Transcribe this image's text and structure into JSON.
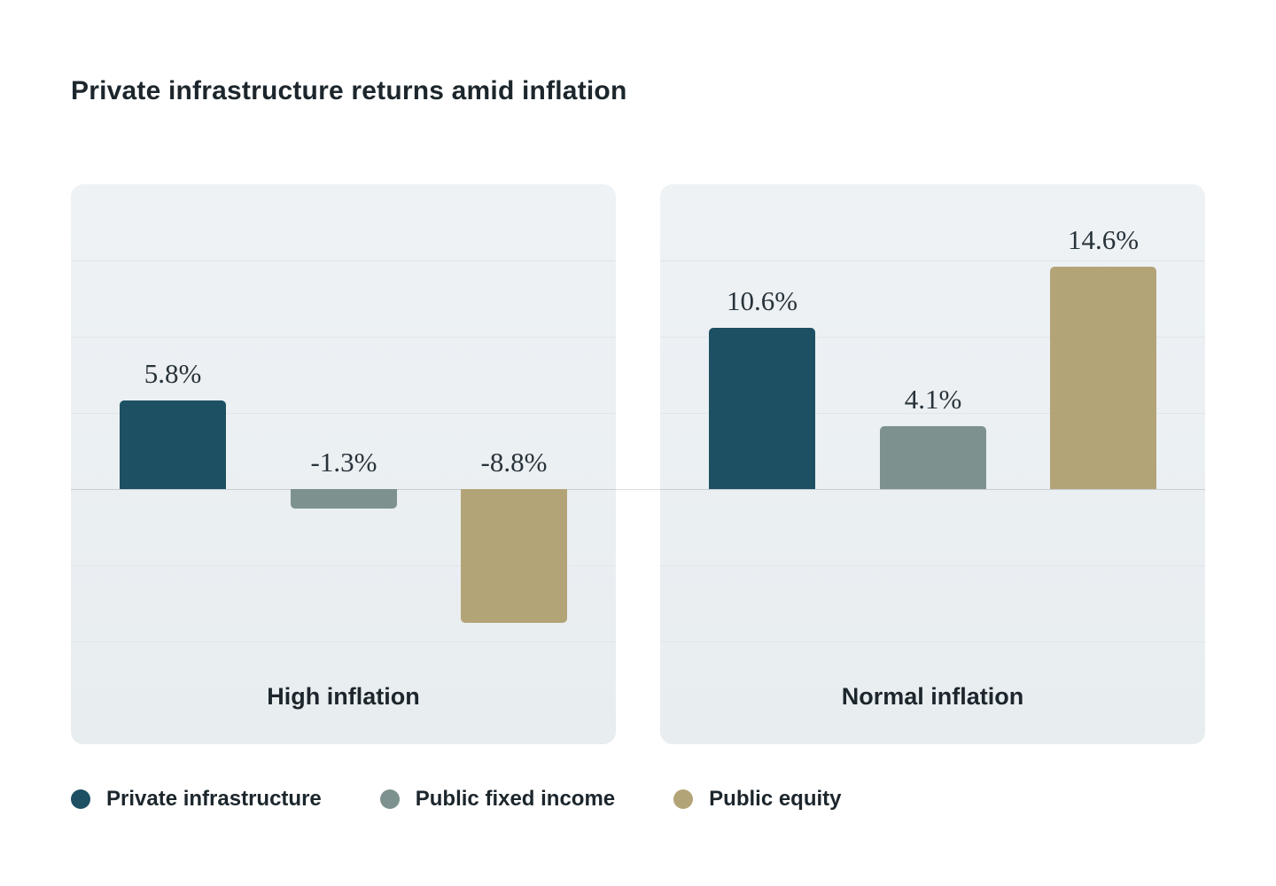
{
  "header": {
    "title": "Private infrastructure returns amid inflation"
  },
  "chart_data": {
    "type": "bar",
    "title": "Private infrastructure returns amid inflation",
    "categories": [
      "High inflation",
      "Normal inflation"
    ],
    "series": [
      {
        "name": "Private infrastructure",
        "color": "#1d5063",
        "values": [
          5.8,
          10.6
        ],
        "labels": [
          "5.8%",
          "10.6%"
        ]
      },
      {
        "name": "Public fixed income",
        "color": "#7d928e",
        "values": [
          -1.3,
          4.1
        ],
        "labels": [
          "-1.3%",
          "4.1%"
        ]
      },
      {
        "name": "Public equity",
        "color": "#b3a478",
        "values": [
          -8.8,
          14.6
        ],
        "labels": [
          "-8.8%",
          "14.6%"
        ]
      }
    ],
    "ylim": [
      -12,
      17
    ],
    "grid_step": 5,
    "grid": true,
    "legend_position": "bottom",
    "value_suffix": "%"
  }
}
